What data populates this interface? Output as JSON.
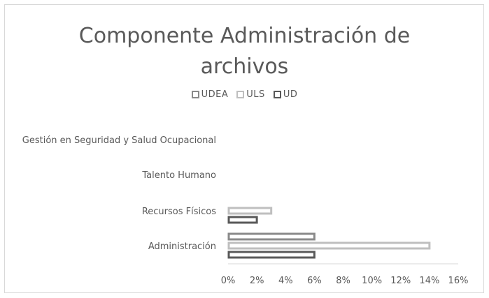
{
  "chart_data": {
    "type": "bar",
    "orientation": "horizontal",
    "title": "Componente Administración de archivos",
    "categories": [
      "Administración",
      "Recursos Físicos",
      "Talento Humano",
      "Gestión en Seguridad y Salud Ocupacional"
    ],
    "series": [
      {
        "name": "UDEA",
        "color": "#8a8a8a",
        "values": [
          0.06,
          0,
          0,
          0
        ]
      },
      {
        "name": "ULS",
        "color": "#bfbfbf",
        "values": [
          0.14,
          0.03,
          0,
          0
        ]
      },
      {
        "name": "UD",
        "color": "#595959",
        "values": [
          0.06,
          0.02,
          0,
          0
        ]
      }
    ],
    "xlim": [
      0,
      0.16
    ],
    "xticks": [
      0,
      0.02,
      0.04,
      0.06,
      0.08,
      0.1,
      0.12,
      0.14,
      0.16
    ],
    "xtick_labels": [
      "0%",
      "2%",
      "4%",
      "6%",
      "8%",
      "10%",
      "12%",
      "14%",
      "16%"
    ],
    "legend_position": "top",
    "grid": false
  }
}
